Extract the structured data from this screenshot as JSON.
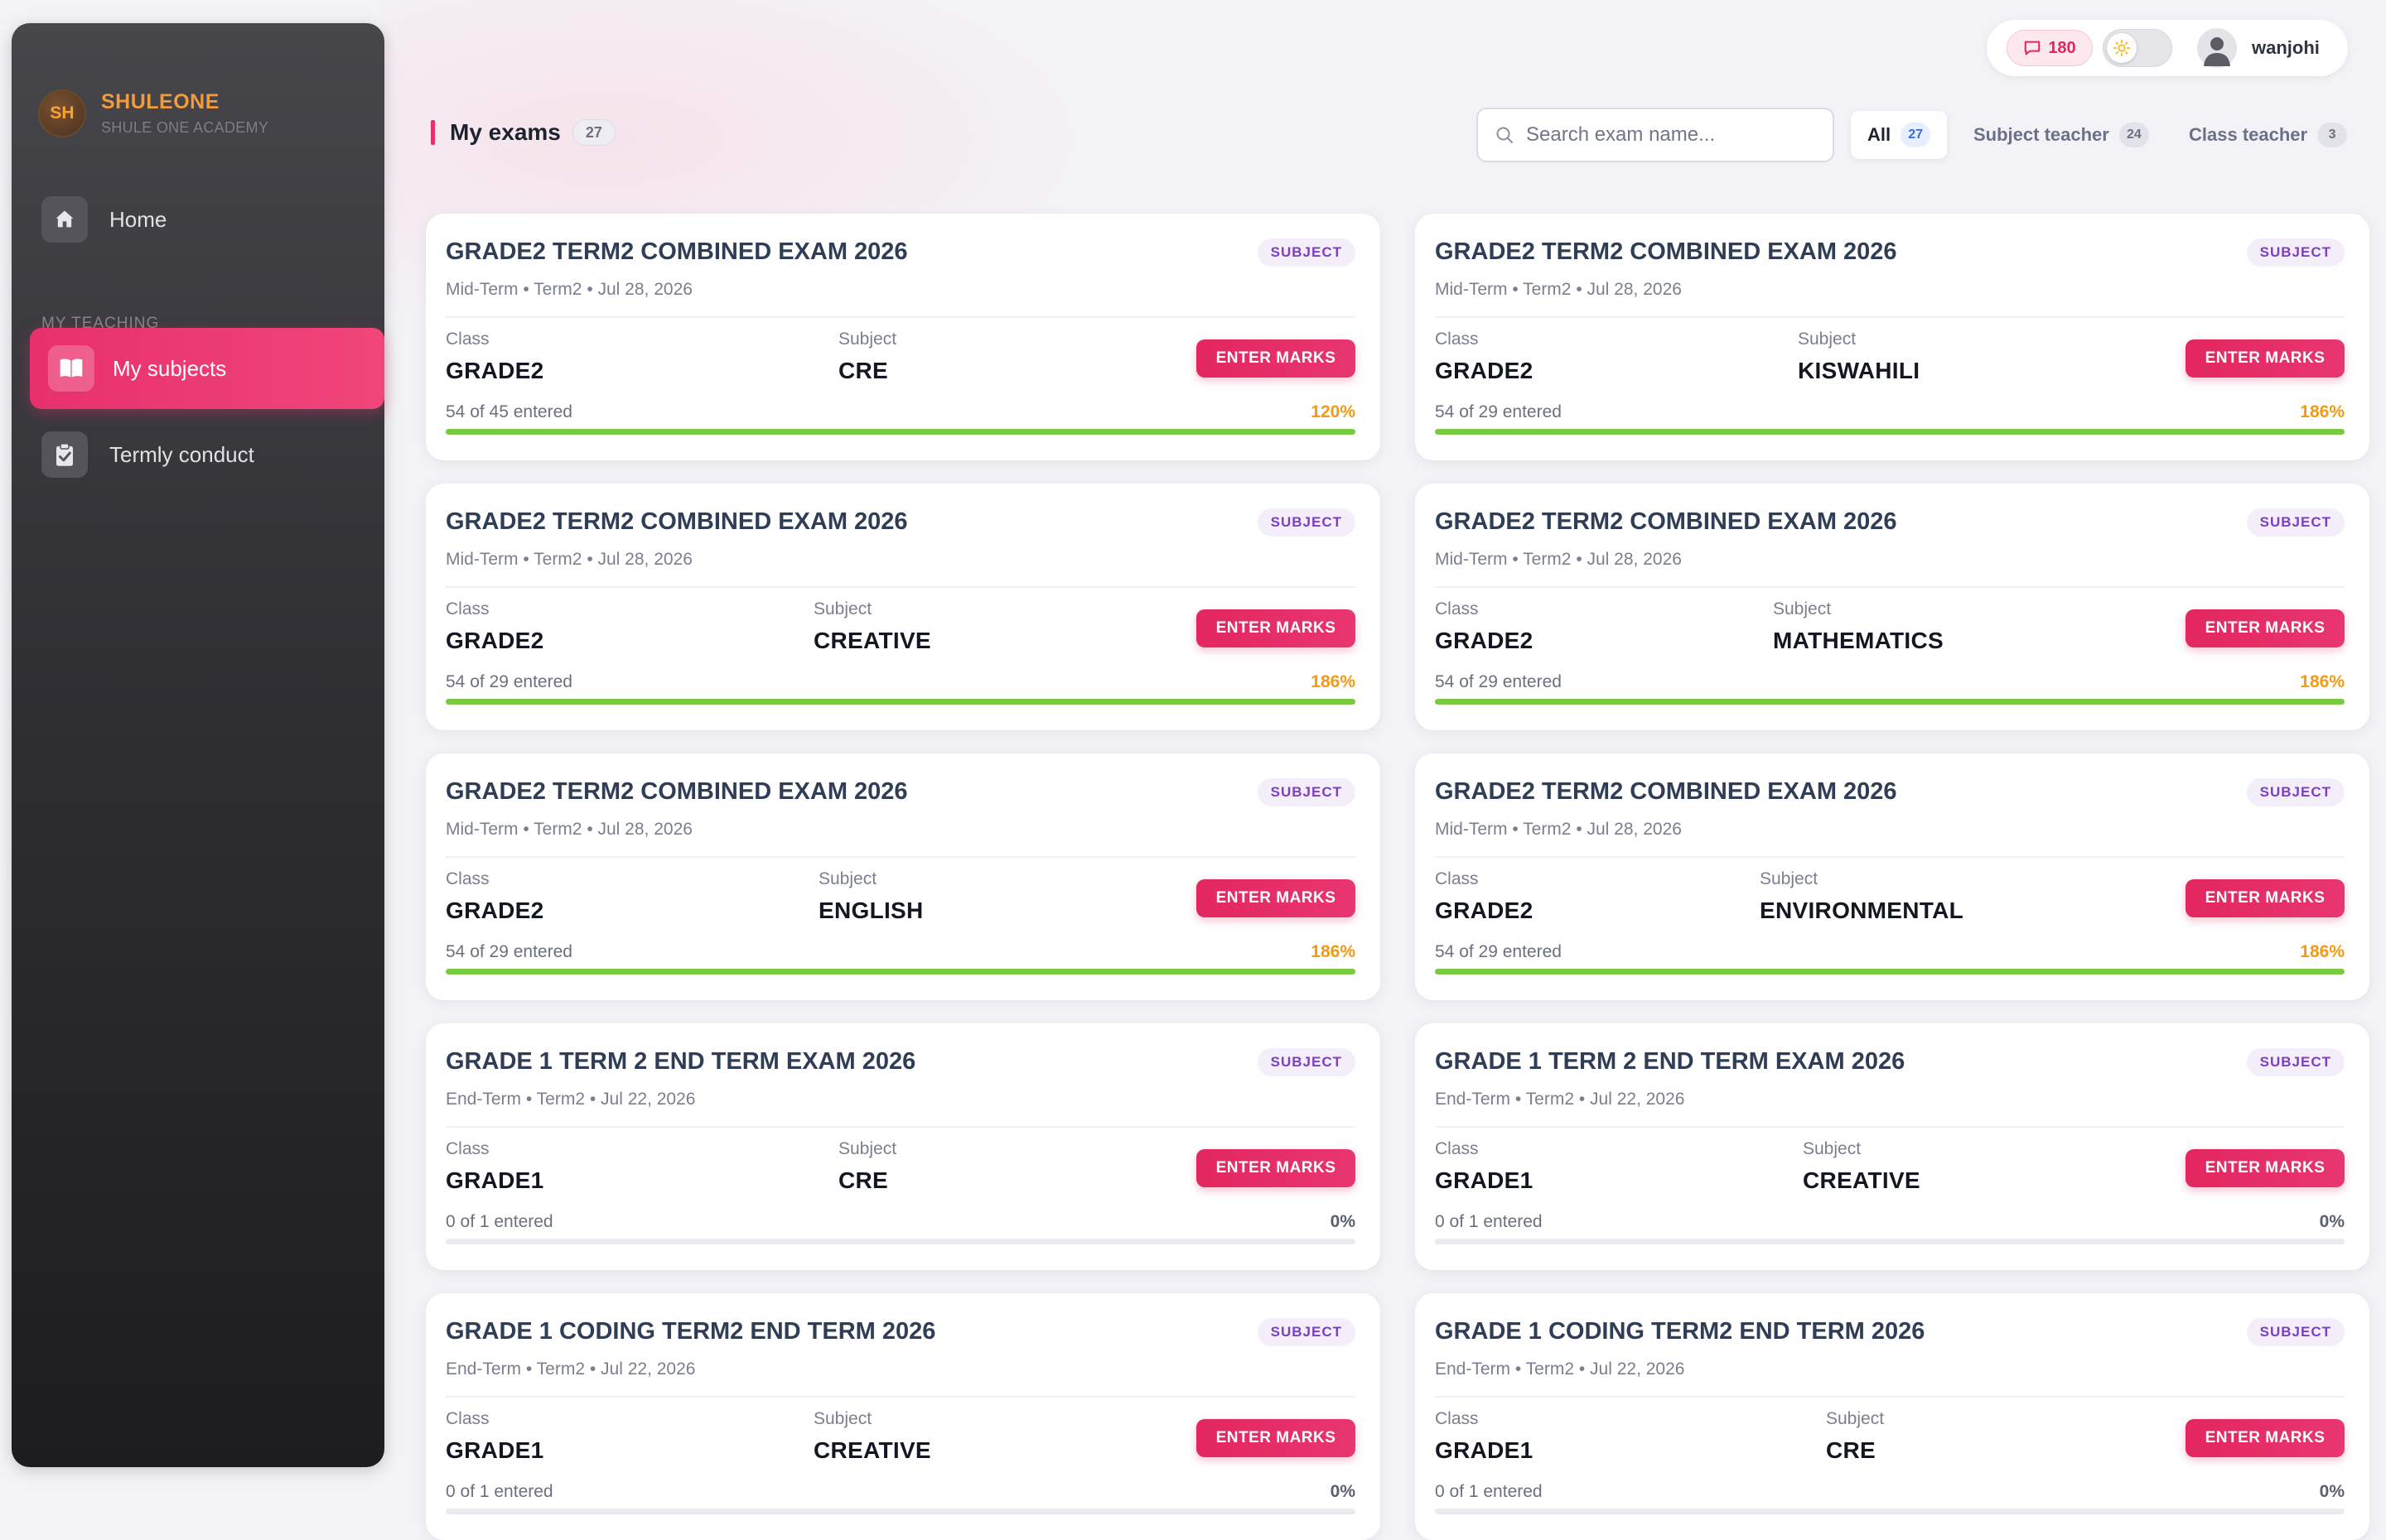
{
  "brand": {
    "initials": "SH",
    "name": "SHULEONE",
    "sub": "SHULE ONE ACADEMY"
  },
  "nav": {
    "home": "Home",
    "section": "MY TEACHING",
    "my_subjects": "My subjects",
    "termly_conduct": "Termly conduct"
  },
  "topbar": {
    "messages": "180",
    "user": "wanjohi"
  },
  "header": {
    "title": "My exams",
    "count": "27"
  },
  "search": {
    "placeholder": "Search exam name..."
  },
  "filters": [
    {
      "label": "All",
      "count": "27",
      "active": true
    },
    {
      "label": "Subject teacher",
      "count": "24",
      "active": false
    },
    {
      "label": "Class teacher",
      "count": "3",
      "active": false
    }
  ],
  "labels": {
    "class": "Class",
    "subject": "Subject",
    "tag": "SUBJECT",
    "button": "ENTER MARKS"
  },
  "colors": {
    "accent": "#e8306c",
    "progress": "#7ac943",
    "over_pct": "#f39a12"
  },
  "cards": [
    {
      "title": "GRADE2 TERM2 COMBINED EXAM 2026",
      "meta": "Mid-Term • Term2 • Jul 28, 2026",
      "class": "GRADE2",
      "subject": "CRE",
      "entered": "54 of 45 entered",
      "pct": "120%",
      "progress": 1.0
    },
    {
      "title": "GRADE2 TERM2 COMBINED EXAM 2026",
      "meta": "Mid-Term • Term2 • Jul 28, 2026",
      "class": "GRADE2",
      "subject": "KISWAHILI",
      "entered": "54 of 29 entered",
      "pct": "186%",
      "progress": 1.0
    },
    {
      "title": "GRADE2 TERM2 COMBINED EXAM 2026",
      "meta": "Mid-Term • Term2 • Jul 28, 2026",
      "class": "GRADE2",
      "subject": "CREATIVE",
      "entered": "54 of 29 entered",
      "pct": "186%",
      "progress": 1.0
    },
    {
      "title": "GRADE2 TERM2 COMBINED EXAM 2026",
      "meta": "Mid-Term • Term2 • Jul 28, 2026",
      "class": "GRADE2",
      "subject": "MATHEMATICS",
      "entered": "54 of 29 entered",
      "pct": "186%",
      "progress": 1.0
    },
    {
      "title": "GRADE2 TERM2 COMBINED EXAM 2026",
      "meta": "Mid-Term • Term2 • Jul 28, 2026",
      "class": "GRADE2",
      "subject": "ENGLISH",
      "entered": "54 of 29 entered",
      "pct": "186%",
      "progress": 1.0
    },
    {
      "title": "GRADE2 TERM2 COMBINED EXAM 2026",
      "meta": "Mid-Term • Term2 • Jul 28, 2026",
      "class": "GRADE2",
      "subject": "ENVIRONMENTAL",
      "entered": "54 of 29 entered",
      "pct": "186%",
      "progress": 1.0
    },
    {
      "title": "GRADE 1 TERM 2 END TERM EXAM 2026",
      "meta": "End-Term • Term2 • Jul 22, 2026",
      "class": "GRADE1",
      "subject": "CRE",
      "entered": "0 of 1 entered",
      "pct": "0%",
      "progress": 0
    },
    {
      "title": "GRADE 1 TERM 2 END TERM EXAM 2026",
      "meta": "End-Term • Term2 • Jul 22, 2026",
      "class": "GRADE1",
      "subject": "CREATIVE",
      "entered": "0 of 1 entered",
      "pct": "0%",
      "progress": 0
    },
    {
      "title": "GRADE 1 CODING TERM2 END TERM 2026",
      "meta": "End-Term • Term2 • Jul 22, 2026",
      "class": "GRADE1",
      "subject": "CREATIVE",
      "entered": "0 of 1 entered",
      "pct": "0%",
      "progress": 0
    },
    {
      "title": "GRADE 1 CODING TERM2 END TERM 2026",
      "meta": "End-Term • Term2 • Jul 22, 2026",
      "class": "GRADE1",
      "subject": "CRE",
      "entered": "0 of 1 entered",
      "pct": "0%",
      "progress": 0
    }
  ]
}
